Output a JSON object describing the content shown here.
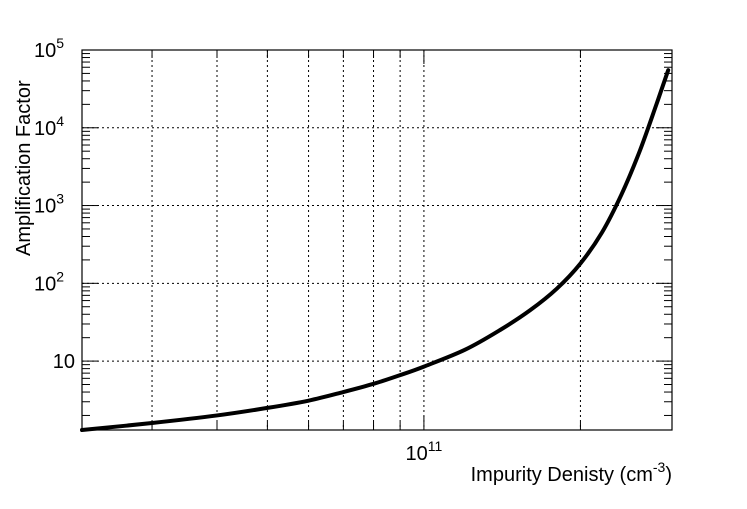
{
  "chart_data": {
    "type": "line",
    "xlabel": "Impurity Denisty (cm",
    "xlabel_sup": "-3",
    "xlabel_close": ")",
    "ylabel": "Amplification Factor",
    "xscale": "log",
    "yscale": "log",
    "xlim": [
      22000000000.0,
      300000000000.0
    ],
    "ylim": [
      1.3,
      100000
    ],
    "grid": true,
    "x_tick_labels": [
      {
        "value": 100000000000.0,
        "base": "10",
        "exp": "11"
      }
    ],
    "y_tick_labels": [
      {
        "value": 10,
        "base": "10",
        "exp": ""
      },
      {
        "value": 100,
        "base": "10",
        "exp": "2"
      },
      {
        "value": 1000,
        "base": "10",
        "exp": "3"
      },
      {
        "value": 10000,
        "base": "10",
        "exp": "4"
      },
      {
        "value": 100000,
        "base": "10",
        "exp": "5"
      }
    ],
    "series": [
      {
        "x": [
          22000000000.0,
          30000000000.0,
          40000000000.0,
          50000000000.0,
          60000000000.0,
          70000000000.0,
          80000000000.0,
          90000000000.0,
          100000000000.0,
          120000000000.0,
          140000000000.0,
          160000000000.0,
          180000000000.0,
          200000000000.0,
          220000000000.0,
          240000000000.0,
          260000000000.0,
          280000000000.0,
          295000000000.0
        ],
        "y": [
          1.3,
          1.6,
          2.0,
          2.5,
          3.1,
          4.0,
          5.1,
          6.6,
          8.5,
          14,
          25,
          45,
          85,
          180,
          450,
          1400,
          5000,
          20000,
          55000
        ]
      }
    ]
  }
}
